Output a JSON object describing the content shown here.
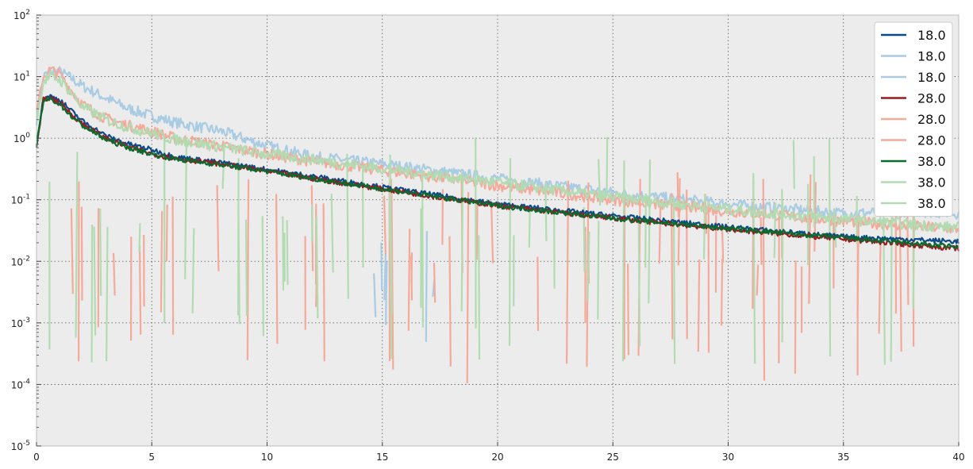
{
  "chart_data": {
    "type": "line",
    "title": "",
    "xlabel": "",
    "ylabel": "",
    "xlim": [
      0,
      40
    ],
    "ylim": [
      1e-05,
      100
    ],
    "yscale": "log",
    "grid": true,
    "legend_position": "top-right",
    "x_ticks": [
      0,
      5,
      10,
      15,
      20,
      25,
      30,
      35,
      40
    ],
    "y_ticks": [
      {
        "value": 1e-05,
        "base": "10",
        "exp": "-5"
      },
      {
        "value": 0.0001,
        "base": "10",
        "exp": "-4"
      },
      {
        "value": 0.001,
        "base": "10",
        "exp": "-3"
      },
      {
        "value": 0.01,
        "base": "10",
        "exp": "-2"
      },
      {
        "value": 0.1,
        "base": "10",
        "exp": "-1"
      },
      {
        "value": 1,
        "base": "10",
        "exp": "0"
      },
      {
        "value": 10,
        "base": "10",
        "exp": "1"
      },
      {
        "value": 100,
        "base": "10",
        "exp": "2"
      }
    ],
    "background_color": "#ececec",
    "series": [
      {
        "name": "18.0",
        "color": "#0b4a8b",
        "alpha": 1.0,
        "style": "main",
        "x": [
          0,
          0.3,
          0.6,
          1,
          1.5,
          2,
          3,
          4,
          5,
          6,
          8,
          10,
          12,
          15,
          20,
          25,
          30,
          35,
          40
        ],
        "y": [
          0.8,
          4.5,
          4.8,
          4.2,
          2.8,
          1.9,
          1.1,
          0.8,
          0.65,
          0.5,
          0.4,
          0.31,
          0.24,
          0.16,
          0.085,
          0.055,
          0.036,
          0.025,
          0.021
        ]
      },
      {
        "name": "18.0",
        "color": "#a9cce3",
        "alpha": 1.0,
        "style": "main",
        "x": [
          0,
          0.3,
          0.6,
          1,
          1.5,
          2,
          3,
          4,
          5,
          6,
          8,
          10,
          12,
          15,
          20,
          25,
          30,
          35,
          38,
          40
        ],
        "y": [
          2,
          10,
          12,
          12,
          9.5,
          7,
          4.5,
          3.0,
          2.3,
          1.8,
          1.3,
          0.75,
          0.5,
          0.38,
          0.22,
          0.13,
          0.085,
          0.06,
          0.065,
          0.06
        ]
      },
      {
        "name": "18.0",
        "color": "#a9cce3",
        "alpha": 1.0,
        "style": "noise",
        "x_range": [
          14.5,
          18.7
        ],
        "y_range": [
          0.0004,
          0.035
        ],
        "spikes": 6
      },
      {
        "name": "28.0",
        "color": "#9b1a1f",
        "alpha": 1.0,
        "style": "main",
        "x": [
          0,
          0.3,
          0.6,
          1,
          1.5,
          2,
          3,
          4,
          5,
          6,
          8,
          10,
          12,
          15,
          20,
          25,
          30,
          35,
          40
        ],
        "y": [
          0.7,
          4.2,
          4.5,
          3.8,
          2.5,
          1.7,
          1.0,
          0.72,
          0.56,
          0.47,
          0.38,
          0.29,
          0.22,
          0.15,
          0.08,
          0.05,
          0.033,
          0.023,
          0.016
        ]
      },
      {
        "name": "28.0",
        "color": "#f4a99a",
        "alpha": 1.0,
        "style": "main",
        "x": [
          0,
          0.3,
          0.6,
          1,
          1.5,
          2,
          3,
          4,
          5,
          6,
          8,
          10,
          12,
          15,
          20,
          25,
          30,
          35,
          40
        ],
        "y": [
          2.5,
          10,
          13,
          11,
          6,
          3.5,
          2.1,
          1.6,
          1.3,
          1.0,
          0.75,
          0.55,
          0.42,
          0.3,
          0.17,
          0.1,
          0.065,
          0.045,
          0.033
        ]
      },
      {
        "name": "28.0",
        "color": "#f4a99a",
        "alpha": 1.0,
        "style": "noise",
        "x_range": [
          1.5,
          38.2
        ],
        "y_range": [
          0.0001,
          0.3
        ],
        "spikes": 70
      },
      {
        "name": "38.0",
        "color": "#0b6b2e",
        "alpha": 1.0,
        "style": "main",
        "x": [
          0,
          0.3,
          0.6,
          1,
          1.5,
          2,
          3,
          4,
          5,
          6,
          8,
          10,
          12,
          15,
          20,
          25,
          30,
          35,
          40
        ],
        "y": [
          0.75,
          4.0,
          4.3,
          3.6,
          2.3,
          1.6,
          0.95,
          0.7,
          0.55,
          0.46,
          0.37,
          0.29,
          0.22,
          0.15,
          0.08,
          0.05,
          0.034,
          0.024,
          0.017
        ]
      },
      {
        "name": "38.0",
        "color": "#b2dbb2",
        "alpha": 1.0,
        "style": "main",
        "x": [
          0,
          0.3,
          0.6,
          1,
          1.5,
          2,
          3,
          4,
          5,
          6,
          8,
          10,
          12,
          15,
          20,
          25,
          30,
          35,
          40
        ],
        "y": [
          2.0,
          8.5,
          10,
          9,
          5.5,
          3.2,
          2.0,
          1.5,
          1.2,
          0.95,
          0.72,
          0.55,
          0.45,
          0.32,
          0.19,
          0.11,
          0.07,
          0.048,
          0.035
        ]
      },
      {
        "name": "38.0",
        "color": "#b2dbb2",
        "alpha": 1.0,
        "style": "noise",
        "x_range": [
          0.3,
          38.5
        ],
        "y_range": [
          0.0002,
          1.2
        ],
        "spikes": 60
      }
    ]
  }
}
